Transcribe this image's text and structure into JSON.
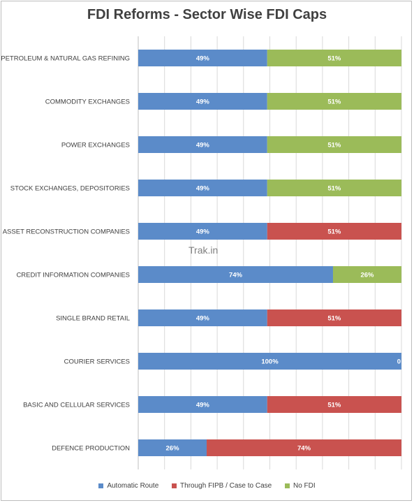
{
  "title": "FDI Reforms - Sector Wise FDI Caps",
  "watermark": "Trak.in",
  "colors": {
    "automatic": "#5b8bc9",
    "fipb": "#c9524f",
    "nofdi": "#9bbb59"
  },
  "chart_data": {
    "type": "bar",
    "orientation": "horizontal",
    "stacked": true,
    "percent_stacked": true,
    "categories": [
      "PETROLEUM & NATURAL GAS REFINING",
      "COMMODITY EXCHANGES",
      "POWER EXCHANGES",
      "STOCK EXCHANGES, DEPOSITORIES",
      "ASSET RECONSTRUCTION COMPANIES",
      "CREDIT INFORMATION COMPANIES",
      "SINGLE BRAND RETAIL",
      "COURIER SERVICES",
      "BASIC AND CELLULAR SERVICES",
      "DEFENCE PRODUCTION"
    ],
    "series": [
      {
        "name": "Automatic Route",
        "color_key": "automatic",
        "values": [
          49,
          49,
          49,
          49,
          49,
          74,
          49,
          100,
          49,
          26
        ],
        "labels": [
          "49%",
          "49%",
          "49%",
          "49%",
          "49%",
          "74%",
          "49%",
          "100%",
          "49%",
          "26%"
        ]
      },
      {
        "name": "Through FIPB / Case to Case",
        "color_key": "fipb",
        "values": [
          0,
          0,
          0,
          0,
          51,
          0,
          51,
          0,
          51,
          74
        ],
        "labels": [
          "",
          "",
          "",
          "",
          "51%",
          "",
          "51%",
          "0",
          "51%",
          "74%"
        ]
      },
      {
        "name": "No FDI",
        "color_key": "nofdi",
        "values": [
          51,
          51,
          51,
          51,
          0,
          26,
          0,
          0,
          0,
          0
        ],
        "labels": [
          "51%",
          "51%",
          "51%",
          "51%",
          "",
          "26%",
          "",
          "",
          "",
          ""
        ]
      }
    ],
    "xlim": [
      0,
      100
    ],
    "grid": true,
    "legend_position": "bottom"
  }
}
